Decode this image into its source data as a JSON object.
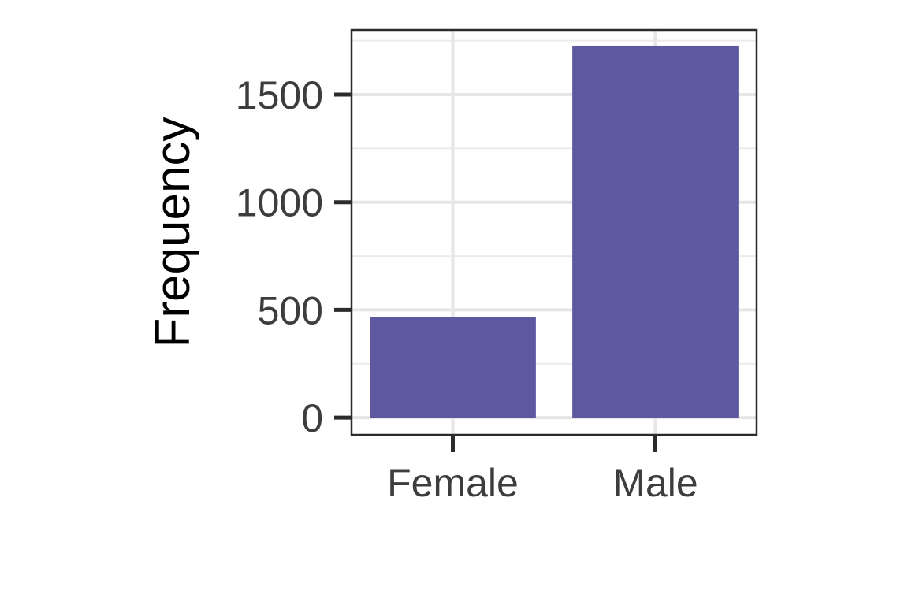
{
  "chart_data": {
    "type": "bar",
    "categories": [
      "Female",
      "Male"
    ],
    "values": [
      468,
      1727
    ],
    "title": "",
    "xlabel": "",
    "ylabel": "Frequency",
    "ylim": [
      -80,
      1800
    ],
    "yticks": [
      0,
      500,
      1000,
      1500
    ],
    "grid": true,
    "legend": "none",
    "bar_color": "#5e58a0"
  }
}
